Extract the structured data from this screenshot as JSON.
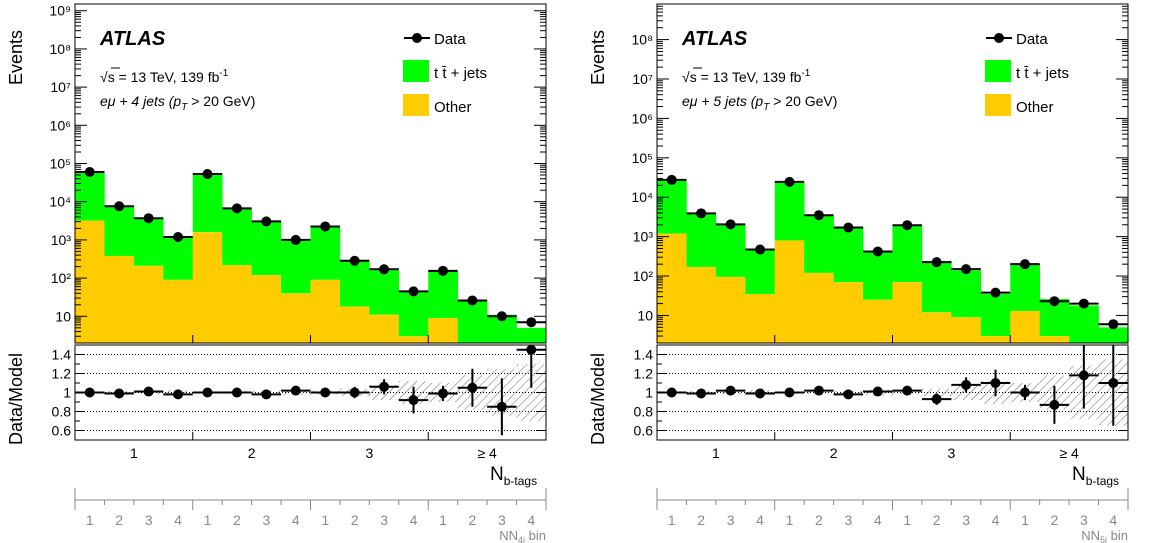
{
  "shared": {
    "ylabel_main": "Events",
    "ylabel_ratio": "Data/Model",
    "atlas_label": "ATLAS",
    "sqrt_s_label": "s = 13 TeV, 139 fb",
    "sqrt_s_sqrt": "√",
    "lumi_exp": "-1",
    "ratio_ticks": [
      "0.6",
      "0.8",
      "1",
      "1.2",
      "1.4"
    ],
    "group_labels": [
      "1",
      "2",
      "3",
      "≥ 4"
    ],
    "nb_label": "N",
    "nb_sub": "b-tags",
    "nn_bin_labels": [
      "1",
      "2",
      "3",
      "4",
      "1",
      "2",
      "3",
      "4",
      "1",
      "2",
      "3",
      "4",
      "1",
      "2",
      "3",
      "4"
    ],
    "nn_prefix": "NN",
    "nn_suffix": " bin",
    "colors": {
      "ttbar": "#00ff00",
      "other": "#ffcc00",
      "data": "#000000",
      "hatch": "#666666"
    }
  },
  "chart_data": [
    {
      "type": "bar",
      "stacked": true,
      "log_scale_y": true,
      "ylim": [
        2,
        1500000000
      ],
      "y_ticks": [
        "10",
        "10²",
        "10³",
        "10⁴",
        "10⁵",
        "10⁶",
        "10⁷",
        "10⁸",
        "10⁹"
      ],
      "selection_label": "eμ + 4 jets (p",
      "selection_label_sub": "T",
      "selection_label_tail": " > 20 GeV)",
      "nn_sub": "4j",
      "bins": [
        "1",
        "2",
        "3",
        "4",
        "1",
        "2",
        "3",
        "4",
        "1",
        "2",
        "3",
        "4",
        "1",
        "2",
        "3",
        "4"
      ],
      "legend": [
        "Data",
        "t t̄ + jets",
        "Other"
      ],
      "series": [
        {
          "name": "Other",
          "values": [
            3200,
            380,
            210,
            90,
            1600,
            220,
            120,
            40,
            90,
            18,
            11,
            3,
            9,
            2,
            1.5,
            1
          ]
        },
        {
          "name": "t t̄ + jets",
          "values": [
            58000,
            7500,
            3600,
            1200,
            52000,
            6600,
            3000,
            1000,
            2200,
            280,
            160,
            45,
            150,
            26,
            11,
            5
          ]
        },
        {
          "name": "Data",
          "values": [
            60000,
            7600,
            3700,
            1190,
            53000,
            6700,
            3050,
            1000,
            2250,
            285,
            170,
            45,
            155,
            26,
            10,
            7
          ]
        }
      ],
      "ratio": {
        "ylim": [
          0.5,
          1.5
        ],
        "values": [
          1.0,
          0.99,
          1.01,
          0.98,
          1.0,
          1.0,
          0.98,
          1.02,
          1.0,
          1.0,
          1.06,
          0.92,
          0.99,
          1.05,
          0.85,
          1.45
        ],
        "errors": [
          0.005,
          0.01,
          0.02,
          0.03,
          0.005,
          0.01,
          0.02,
          0.03,
          0.02,
          0.06,
          0.08,
          0.14,
          0.08,
          0.2,
          0.3,
          0.4
        ],
        "uncertainty_band": [
          0.01,
          0.015,
          0.02,
          0.025,
          0.01,
          0.015,
          0.02,
          0.03,
          0.02,
          0.04,
          0.08,
          0.12,
          0.1,
          0.18,
          0.25,
          0.3
        ]
      }
    },
    {
      "type": "bar",
      "stacked": true,
      "log_scale_y": true,
      "ylim": [
        2,
        800000000
      ],
      "y_ticks": [
        "10",
        "10²",
        "10³",
        "10⁴",
        "10⁵",
        "10⁶",
        "10⁷",
        "10⁸"
      ],
      "selection_label": "eμ + 5 jets (p",
      "selection_label_sub": "T",
      "selection_label_tail": " > 20 GeV)",
      "nn_sub": "5j",
      "bins": [
        "1",
        "2",
        "3",
        "4",
        "1",
        "2",
        "3",
        "4",
        "1",
        "2",
        "3",
        "4",
        "1",
        "2",
        "3",
        "4"
      ],
      "legend": [
        "Data",
        "t t̄ + jets",
        "Other"
      ],
      "series": [
        {
          "name": "Other",
          "values": [
            1200,
            170,
            95,
            35,
            800,
            120,
            70,
            25,
            70,
            12,
            9,
            3,
            13,
            3,
            2,
            1
          ]
        },
        {
          "name": "t t̄ + jets",
          "values": [
            27000,
            3900,
            2000,
            480,
            24000,
            3400,
            1750,
            420,
            1900,
            240,
            140,
            35,
            200,
            26,
            18,
            5
          ]
        },
        {
          "name": "Data",
          "values": [
            27500,
            3900,
            2050,
            470,
            24500,
            3500,
            1700,
            420,
            1950,
            225,
            150,
            38,
            200,
            23,
            20,
            6
          ]
        }
      ],
      "ratio": {
        "ylim": [
          0.5,
          1.5
        ],
        "values": [
          1.0,
          0.99,
          1.02,
          0.99,
          1.0,
          1.02,
          0.98,
          1.01,
          1.02,
          0.93,
          1.08,
          1.1,
          1.0,
          0.87,
          1.18,
          1.1
        ],
        "errors": [
          0.005,
          0.01,
          0.02,
          0.03,
          0.005,
          0.01,
          0.02,
          0.03,
          0.02,
          0.06,
          0.08,
          0.14,
          0.08,
          0.2,
          0.35,
          0.45
        ],
        "uncertainty_band": [
          0.01,
          0.015,
          0.02,
          0.025,
          0.01,
          0.015,
          0.02,
          0.03,
          0.02,
          0.04,
          0.08,
          0.12,
          0.1,
          0.18,
          0.28,
          0.35
        ]
      }
    }
  ]
}
